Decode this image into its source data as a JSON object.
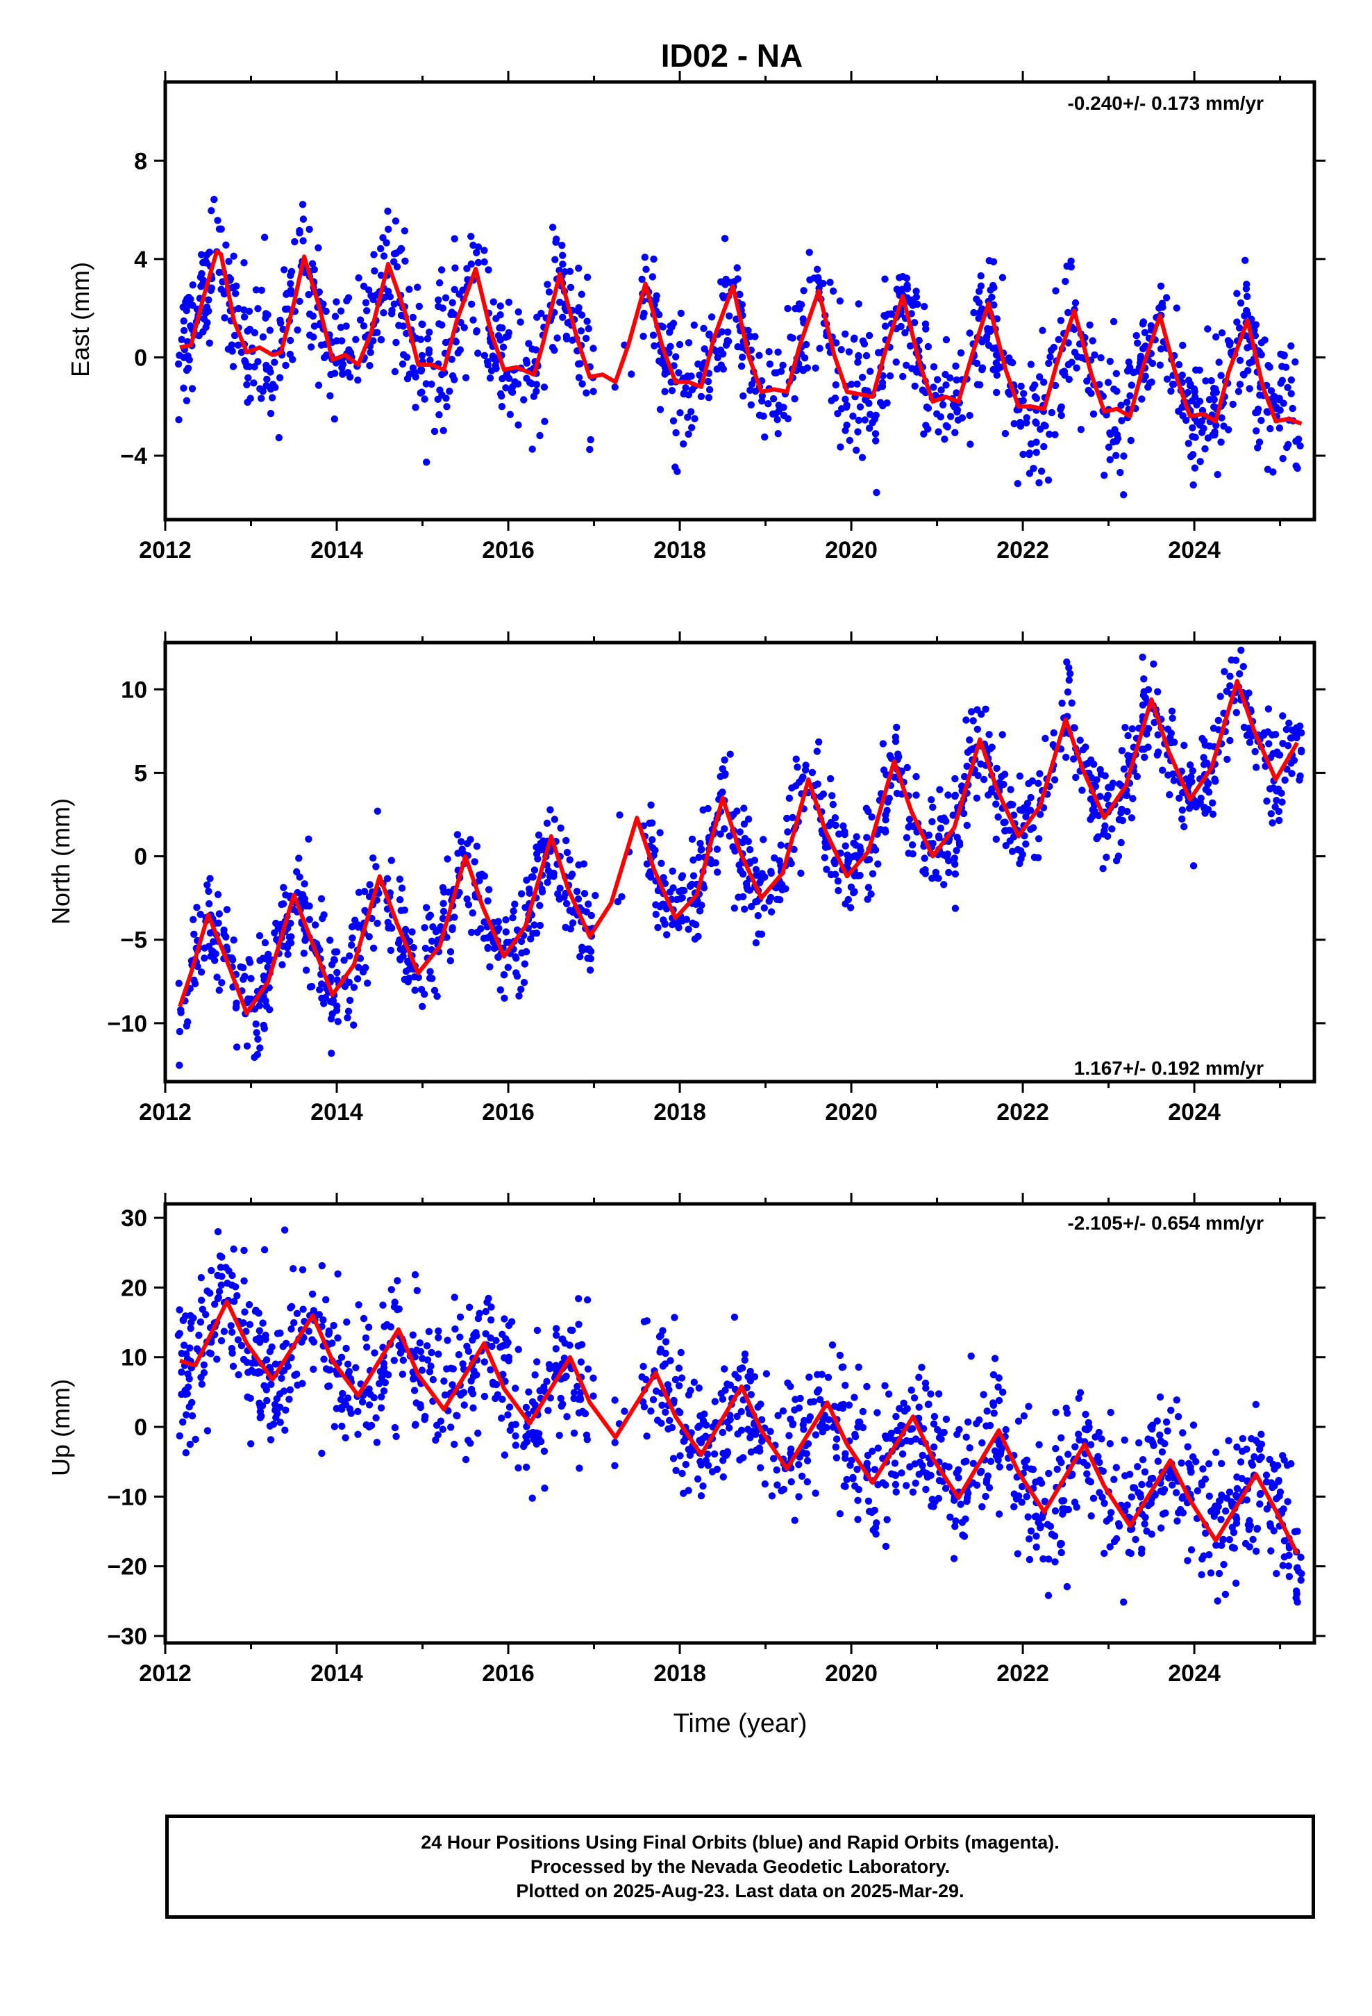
{
  "title": "ID02 - NA",
  "xlabel": "Time (year)",
  "colors": {
    "points": "#0000ff",
    "fit": "#ff0000",
    "frame": "#000000"
  },
  "footer": {
    "line1": "24 Hour Positions Using Final Orbits (blue) and Rapid Orbits (magenta).",
    "line2": "Processed by the Nevada Geodetic Laboratory.",
    "line3": "Plotted on 2025-Aug-23. Last data on 2025-Mar-29."
  },
  "chart_data": [
    {
      "type": "scatter",
      "id": "east",
      "ylabel": "East (mm)",
      "xlim": [
        2012.0,
        2025.4
      ],
      "ylim": [
        -6.6,
        11.2
      ],
      "xticks": [
        2012,
        2014,
        2016,
        2018,
        2020,
        2022,
        2024
      ],
      "yticks": [
        -4,
        0,
        4,
        8
      ],
      "rate_label": "-0.240+/- 0.173 mm/yr",
      "rate_position": "top-right",
      "series": [
        {
          "kind": "fit",
          "x": [
            2012.17,
            2012.3,
            2012.45,
            2012.6,
            2012.65,
            2012.8,
            2012.95,
            2013.1,
            2013.25,
            2013.35,
            2013.5,
            2013.62,
            2013.8,
            2013.95,
            2014.1,
            2014.25,
            2014.4,
            2014.6,
            2014.8,
            2014.95,
            2015.1,
            2015.25,
            2015.4,
            2015.62,
            2015.8,
            2015.95,
            2016.1,
            2016.3,
            2016.4,
            2016.6,
            2016.8,
            2016.95,
            2017.1,
            2017.25,
            2017.4,
            2017.6,
            2017.8,
            2017.95,
            2018.1,
            2018.25,
            2018.4,
            2018.62,
            2018.8,
            2018.95,
            2019.1,
            2019.25,
            2019.4,
            2019.62,
            2019.8,
            2019.95,
            2020.1,
            2020.25,
            2020.4,
            2020.6,
            2020.8,
            2020.95,
            2021.1,
            2021.25,
            2021.4,
            2021.6,
            2021.8,
            2021.95,
            2022.1,
            2022.25,
            2022.4,
            2022.6,
            2022.8,
            2022.95,
            2023.1,
            2023.25,
            2023.4,
            2023.6,
            2023.8,
            2023.95,
            2024.1,
            2024.25,
            2024.4,
            2024.62,
            2024.8,
            2024.95,
            2025.1,
            2025.25
          ],
          "y": [
            0.4,
            0.5,
            2.5,
            4.3,
            4.2,
            1.5,
            0.2,
            0.4,
            0.1,
            0.2,
            2.2,
            4.1,
            2.0,
            -0.1,
            0.1,
            -0.3,
            1.0,
            3.8,
            1.8,
            -0.3,
            -0.3,
            -0.5,
            1.5,
            3.6,
            1.0,
            -0.5,
            -0.4,
            -0.7,
            0.5,
            3.4,
            0.8,
            -0.8,
            -0.7,
            -1.0,
            0.5,
            3.0,
            0.4,
            -1.0,
            -1.0,
            -1.2,
            0.8,
            2.9,
            0.1,
            -1.4,
            -1.3,
            -1.4,
            0.5,
            2.7,
            0.1,
            -1.4,
            -1.5,
            -1.6,
            0.3,
            2.5,
            -0.3,
            -1.8,
            -1.6,
            -1.8,
            0.0,
            2.2,
            -0.5,
            -2.0,
            -2.0,
            -2.1,
            -0.2,
            1.9,
            -0.7,
            -2.2,
            -2.1,
            -2.4,
            -0.4,
            1.7,
            -0.9,
            -2.4,
            -2.3,
            -2.6,
            -0.6,
            1.5,
            -1.2,
            -2.6,
            -2.5,
            -2.7
          ]
        }
      ]
    },
    {
      "type": "scatter",
      "id": "north",
      "ylabel": "North (mm)",
      "xlim": [
        2012.0,
        2025.4
      ],
      "ylim": [
        -13.5,
        12.8
      ],
      "xticks": [
        2012,
        2014,
        2016,
        2018,
        2020,
        2022,
        2024
      ],
      "yticks": [
        -10,
        -5,
        0,
        5,
        10
      ],
      "rate_label": "1.167+/- 0.192 mm/yr",
      "rate_position": "bottom-right",
      "series": [
        {
          "kind": "fit",
          "x": [
            2012.17,
            2012.3,
            2012.5,
            2012.7,
            2012.95,
            2013.2,
            2013.5,
            2013.7,
            2013.95,
            2014.2,
            2014.5,
            2014.7,
            2014.95,
            2015.2,
            2015.5,
            2015.7,
            2015.95,
            2016.2,
            2016.5,
            2016.7,
            2016.95,
            2017.2,
            2017.5,
            2017.7,
            2017.95,
            2018.2,
            2018.5,
            2018.7,
            2018.95,
            2019.2,
            2019.5,
            2019.7,
            2019.95,
            2020.2,
            2020.5,
            2020.7,
            2020.95,
            2021.2,
            2021.5,
            2021.7,
            2021.95,
            2022.2,
            2022.5,
            2022.7,
            2022.95,
            2023.2,
            2023.5,
            2023.7,
            2023.95,
            2024.2,
            2024.5,
            2024.7,
            2024.95,
            2025.2
          ],
          "y": [
            -9.0,
            -7.0,
            -3.5,
            -6.0,
            -9.4,
            -7.5,
            -2.3,
            -5.0,
            -8.3,
            -6.5,
            -1.2,
            -4.0,
            -7.0,
            -5.4,
            0.0,
            -3.0,
            -6.0,
            -4.2,
            1.2,
            -2.0,
            -4.8,
            -2.8,
            2.3,
            -0.8,
            -3.7,
            -2.3,
            3.5,
            0.3,
            -2.5,
            -1.0,
            4.6,
            1.5,
            -1.2,
            0.3,
            5.7,
            2.7,
            0.0,
            1.7,
            7.0,
            4.0,
            1.2,
            3.0,
            8.2,
            5.2,
            2.3,
            4.2,
            9.4,
            6.3,
            3.4,
            5.3,
            10.5,
            7.5,
            4.6,
            6.8
          ]
        }
      ]
    },
    {
      "type": "scatter",
      "id": "up",
      "ylabel": "Up (mm)",
      "xlim": [
        2012.0,
        2025.4
      ],
      "ylim": [
        -31,
        32
      ],
      "xticks": [
        2012,
        2014,
        2016,
        2018,
        2020,
        2022,
        2024
      ],
      "yticks": [
        -30,
        -20,
        -10,
        0,
        10,
        20,
        30
      ],
      "rate_label": "-2.105+/- 0.654 mm/yr",
      "rate_position": "top-right",
      "series": [
        {
          "kind": "fit",
          "x": [
            2012.17,
            2012.35,
            2012.72,
            2012.95,
            2013.25,
            2013.72,
            2013.95,
            2014.25,
            2014.72,
            2014.95,
            2015.25,
            2015.72,
            2015.95,
            2016.25,
            2016.72,
            2016.95,
            2017.25,
            2017.72,
            2017.95,
            2018.25,
            2018.72,
            2018.95,
            2019.25,
            2019.72,
            2019.95,
            2020.25,
            2020.72,
            2020.95,
            2021.25,
            2021.72,
            2021.95,
            2022.25,
            2022.72,
            2022.95,
            2023.25,
            2023.72,
            2023.95,
            2024.25,
            2024.72,
            2024.95,
            2025.2
          ],
          "y": [
            9.5,
            8.8,
            18.0,
            12.0,
            6.8,
            16.0,
            9.5,
            4.5,
            14.0,
            7.5,
            2.5,
            12.0,
            5.5,
            0.5,
            10.0,
            3.5,
            -1.5,
            7.8,
            1.5,
            -4.0,
            5.8,
            -0.5,
            -6.0,
            3.5,
            -2.5,
            -8.0,
            1.5,
            -4.5,
            -10.2,
            -0.5,
            -6.5,
            -12.2,
            -2.5,
            -8.5,
            -14.2,
            -4.8,
            -10.5,
            -16.3,
            -6.8,
            -12.0,
            -18.2
          ]
        }
      ]
    }
  ]
}
